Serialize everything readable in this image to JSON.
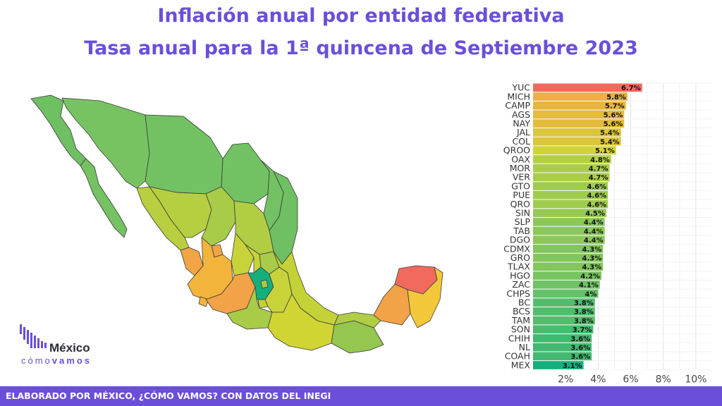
{
  "title": "Inflación anual por entidad federativa",
  "subtitle": "Tasa anual para la 1ª quincena de Septiembre 2023",
  "footer": "ELABORADO POR MÉXICO, ¿CÓMO VAMOS? CON DATOS DEL INEGI",
  "logo": {
    "name": "México",
    "sub_part1": "cómo",
    "sub_part2": "vamos"
  },
  "colors": {
    "brand": "#6b4fd8",
    "low": "#13b07d",
    "mid": "#d6d631",
    "high": "#f26a5e"
  },
  "chart_data": {
    "type": "bar",
    "orientation": "horizontal",
    "categories": [
      "YUC",
      "MICH",
      "CAMP",
      "AGS",
      "NAY",
      "JAL",
      "COL",
      "QROO",
      "OAX",
      "MOR",
      "VER",
      "GTO",
      "PUE",
      "QRO",
      "SIN",
      "SLP",
      "TAB",
      "DGO",
      "CDMX",
      "GRO",
      "TLAX",
      "HGO",
      "ZAC",
      "CHPS",
      "BC",
      "BCS",
      "TAM",
      "SON",
      "CHIH",
      "NL",
      "COAH",
      "MEX"
    ],
    "values": [
      6.7,
      5.8,
      5.7,
      5.6,
      5.6,
      5.4,
      5.4,
      5.1,
      4.8,
      4.7,
      4.7,
      4.6,
      4.6,
      4.6,
      4.5,
      4.4,
      4.4,
      4.4,
      4.3,
      4.3,
      4.3,
      4.2,
      4.1,
      4.0,
      3.8,
      3.8,
      3.8,
      3.7,
      3.6,
      3.6,
      3.6,
      3.1
    ],
    "labels": [
      "6.7%",
      "5.8%",
      "5.7%",
      "5.6%",
      "5.6%",
      "5.4%",
      "5.4%",
      "5.1%",
      "4.8%",
      "4.7%",
      "4.7%",
      "4.6%",
      "4.6%",
      "4.6%",
      "4.5%",
      "4.4%",
      "4.4%",
      "4.4%",
      "4.3%",
      "4.3%",
      "4.3%",
      "4.2%",
      "4.1%",
      "4%",
      "3.8%",
      "3.8%",
      "3.8%",
      "3.7%",
      "3.6%",
      "3.6%",
      "3.6%",
      "3.1%"
    ],
    "x_ticks": [
      "2%",
      "4%",
      "6%",
      "8%",
      "10%"
    ],
    "x_tick_values": [
      2,
      4,
      6,
      8,
      10
    ],
    "xlim": [
      0,
      11
    ],
    "grid": true
  }
}
